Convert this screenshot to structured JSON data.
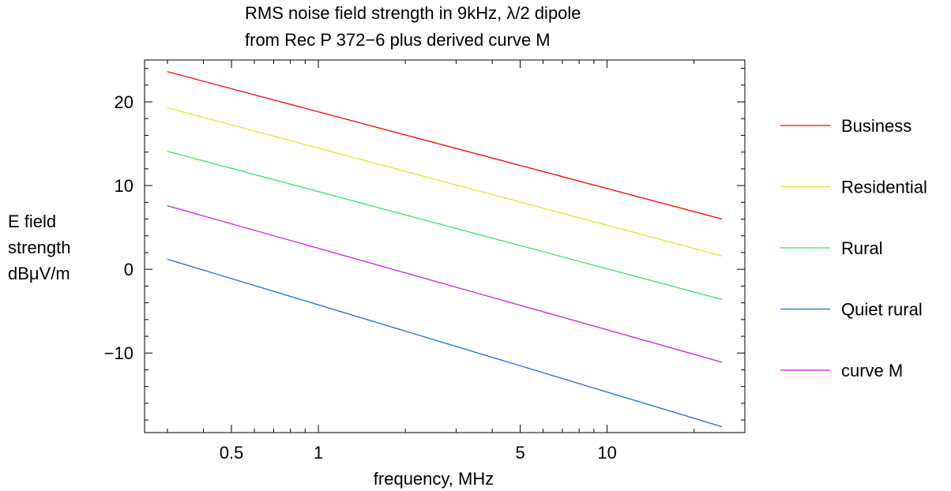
{
  "chart_data": {
    "type": "line",
    "title_lines": [
      "RMS noise field strength in 9kHz, λ/2 dipole",
      "from Rec P 372−6 plus derived curve M"
    ],
    "xlabel": "frequency, MHz",
    "ylabel_lines": [
      "E field",
      "strength",
      "dBμV/m"
    ],
    "x_scale": "log",
    "xlim": [
      0.25,
      30
    ],
    "ylim": [
      -19.5,
      25
    ],
    "x_ticks": [
      {
        "value": 0.5,
        "label": "0.5"
      },
      {
        "value": 1,
        "label": "1"
      },
      {
        "value": 5,
        "label": "5"
      },
      {
        "value": 10,
        "label": "10"
      }
    ],
    "y_ticks": [
      {
        "value": 20,
        "label": "20"
      },
      {
        "value": 10,
        "label": "10"
      },
      {
        "value": 0,
        "label": "0"
      },
      {
        "value": -10,
        "label": "−10"
      }
    ],
    "grid": false,
    "legend_position": "right",
    "series": [
      {
        "name": "Business",
        "color": "#ff0000",
        "x": [
          0.3,
          25
        ],
        "y": [
          23.6,
          6.0
        ]
      },
      {
        "name": "Residential",
        "color": "#e5e528",
        "x": [
          0.3,
          25
        ],
        "y": [
          19.3,
          1.6
        ]
      },
      {
        "name": "Rural",
        "color": "#33e566",
        "x": [
          0.3,
          25
        ],
        "y": [
          14.1,
          -3.6
        ]
      },
      {
        "name": "Quiet rural",
        "color": "#1a66e5",
        "x": [
          0.3,
          25
        ],
        "y": [
          1.2,
          -18.8
        ]
      },
      {
        "name": "curve M",
        "color": "#cc1ae5",
        "x": [
          0.3,
          25
        ],
        "y": [
          7.6,
          -11.1
        ]
      }
    ]
  }
}
